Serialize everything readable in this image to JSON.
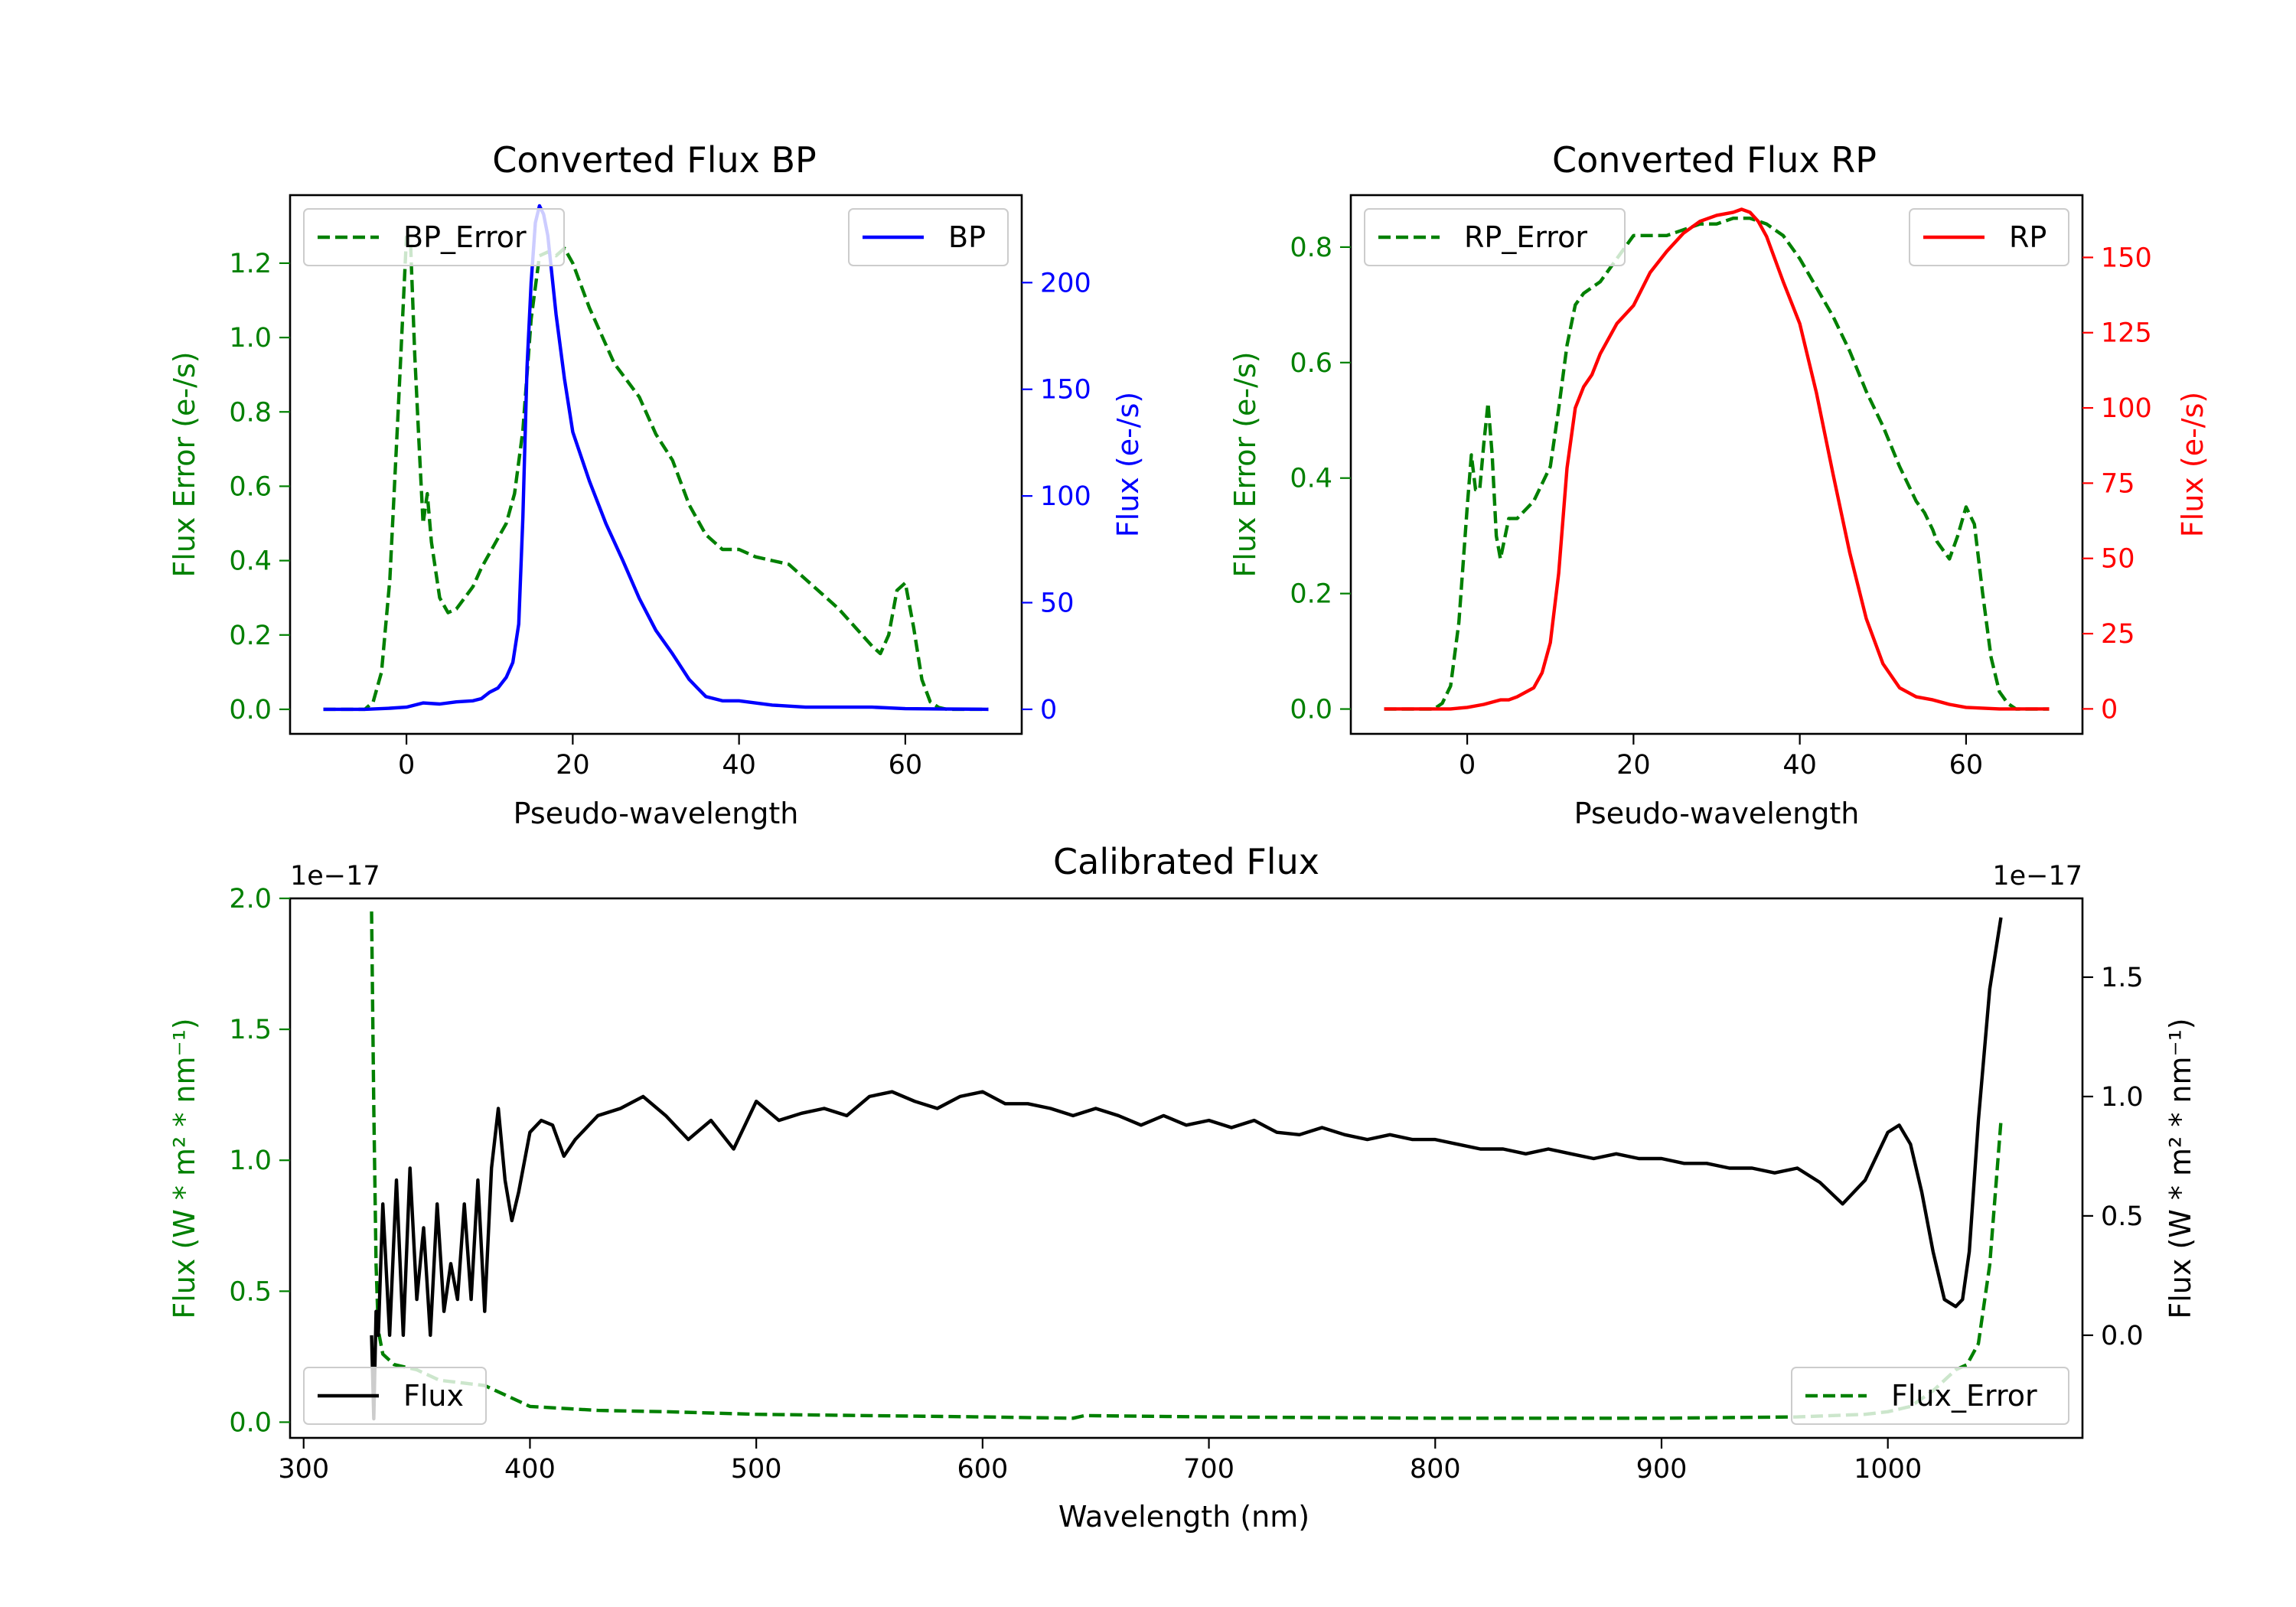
{
  "chart_data": [
    {
      "id": "bp",
      "type": "line",
      "title": "Converted Flux BP",
      "xlabel": "Pseudo-wavelength",
      "xlim": [
        -14,
        74
      ],
      "xticks": [
        0,
        20,
        40,
        60
      ],
      "left_axis": {
        "label": "Flux Error (e-/s)",
        "color": "#008000",
        "ylim": [
          -0.066,
          1.383
        ],
        "ticks": [
          0.0,
          0.2,
          0.4,
          0.6,
          0.8,
          1.0,
          1.2
        ],
        "tick_labels": [
          "0.0",
          "0.2",
          "0.4",
          "0.6",
          "0.8",
          "1.0",
          "1.2"
        ]
      },
      "right_axis": {
        "label": "Flux (e-/s)",
        "color": "#0000ff",
        "ylim": [
          -11.5,
          241
        ],
        "ticks": [
          0,
          50,
          100,
          150,
          200
        ],
        "tick_labels": [
          "0",
          "50",
          "100",
          "150",
          "200"
        ]
      },
      "series": [
        {
          "name": "BP_Error",
          "axis": "left",
          "color": "#008000",
          "style": "dashed",
          "x": [
            -10,
            -5,
            -4,
            -3,
            -2,
            -1,
            0,
            0.5,
            1,
            1.5,
            2,
            2.5,
            3,
            4,
            5,
            6,
            8,
            9,
            10,
            12,
            13,
            14,
            15,
            16,
            17,
            18,
            19,
            20,
            22,
            25,
            28,
            30,
            32,
            34,
            36,
            38,
            40,
            42,
            44,
            46,
            48,
            50,
            52,
            54,
            56,
            57,
            58,
            59,
            60,
            61,
            62,
            63,
            64,
            65,
            66,
            68,
            70
          ],
          "y": [
            0,
            0,
            0.02,
            0.1,
            0.35,
            0.8,
            1.27,
            1.25,
            0.95,
            0.72,
            0.5,
            0.58,
            0.45,
            0.3,
            0.26,
            0.27,
            0.33,
            0.38,
            0.42,
            0.5,
            0.58,
            0.75,
            1.05,
            1.22,
            1.23,
            1.22,
            1.24,
            1.2,
            1.08,
            0.93,
            0.84,
            0.74,
            0.67,
            0.55,
            0.47,
            0.43,
            0.43,
            0.41,
            0.4,
            0.39,
            0.35,
            0.31,
            0.27,
            0.22,
            0.17,
            0.15,
            0.2,
            0.32,
            0.34,
            0.22,
            0.08,
            0.02,
            0.005,
            0,
            0,
            0,
            0
          ]
        },
        {
          "name": "BP",
          "axis": "right",
          "color": "#0000ff",
          "style": "solid",
          "x": [
            -10,
            -5,
            -2,
            0,
            2,
            4,
            6,
            8,
            9,
            10,
            11,
            12,
            12.8,
            13.5,
            14,
            14.5,
            15,
            15.5,
            16,
            16.5,
            17,
            18,
            19,
            20,
            22,
            24,
            26,
            28,
            30,
            32,
            34,
            35,
            36,
            38,
            40,
            44,
            48,
            52,
            56,
            60,
            64,
            70
          ],
          "y": [
            0,
            0,
            0.5,
            1,
            3,
            2.5,
            3.5,
            4,
            5,
            8,
            10,
            15,
            22,
            40,
            90,
            160,
            200,
            228,
            236,
            232,
            222,
            185,
            155,
            130,
            107,
            87,
            70,
            52,
            37,
            26,
            14,
            10,
            6,
            4,
            4,
            2,
            1,
            1,
            1,
            0.3,
            0.2,
            0
          ]
        }
      ],
      "legends": [
        {
          "entries": [
            "BP_Error"
          ],
          "location": "upper left"
        },
        {
          "entries": [
            "BP"
          ],
          "location": "upper right"
        }
      ]
    },
    {
      "id": "rp",
      "type": "line",
      "title": "Converted Flux RP",
      "xlabel": "Pseudo-wavelength",
      "xlim": [
        -14,
        74
      ],
      "xticks": [
        0,
        20,
        40,
        60
      ],
      "left_axis": {
        "label": "Flux Error (e-/s)",
        "color": "#008000",
        "ylim": [
          -0.043,
          0.89
        ],
        "ticks": [
          0.0,
          0.2,
          0.4,
          0.6,
          0.8
        ],
        "tick_labels": [
          "0.0",
          "0.2",
          "0.4",
          "0.6",
          "0.8"
        ]
      },
      "right_axis": {
        "label": "Flux (e-/s)",
        "color": "#ff0000",
        "ylim": [
          -8.3,
          170.7
        ],
        "ticks": [
          0,
          25,
          50,
          75,
          100,
          125,
          150
        ],
        "tick_labels": [
          "0",
          "25",
          "50",
          "75",
          "100",
          "125",
          "150"
        ]
      },
      "series": [
        {
          "name": "RP_Error",
          "axis": "left",
          "color": "#008000",
          "style": "dashed",
          "x": [
            -10,
            -4,
            -3,
            -2,
            -1,
            0,
            0.5,
            1,
            1.5,
            2,
            2.5,
            3,
            3.5,
            4,
            5,
            6,
            8,
            10,
            11,
            12,
            13,
            14,
            16,
            18,
            19,
            20,
            22,
            24,
            26,
            28,
            30,
            32,
            34,
            36,
            38,
            40,
            42,
            44,
            46,
            48,
            50,
            52,
            54,
            55,
            56,
            56.5,
            57,
            58,
            59,
            60,
            61,
            62,
            63,
            64,
            65,
            66,
            70
          ],
          "y": [
            0,
            0,
            0.01,
            0.04,
            0.15,
            0.35,
            0.44,
            0.38,
            0.38,
            0.46,
            0.53,
            0.44,
            0.3,
            0.26,
            0.33,
            0.33,
            0.36,
            0.42,
            0.52,
            0.63,
            0.7,
            0.72,
            0.74,
            0.78,
            0.8,
            0.82,
            0.82,
            0.82,
            0.83,
            0.84,
            0.84,
            0.85,
            0.85,
            0.84,
            0.82,
            0.78,
            0.73,
            0.68,
            0.62,
            0.55,
            0.49,
            0.42,
            0.36,
            0.34,
            0.31,
            0.29,
            0.28,
            0.26,
            0.3,
            0.35,
            0.32,
            0.2,
            0.09,
            0.03,
            0.01,
            0,
            0
          ]
        },
        {
          "name": "RP",
          "axis": "right",
          "color": "#ff0000",
          "style": "solid",
          "x": [
            -10,
            -2,
            0,
            2,
            4,
            5,
            6,
            8,
            9,
            10,
            11,
            12,
            13,
            14,
            15,
            16,
            18,
            20,
            22,
            24,
            26,
            28,
            30,
            32,
            33,
            34,
            35,
            36,
            38,
            40,
            42,
            44,
            46,
            48,
            50,
            52,
            54,
            56,
            58,
            60,
            64,
            70
          ],
          "y": [
            0,
            0,
            0.5,
            1.5,
            3,
            3,
            4,
            7,
            12,
            22,
            45,
            80,
            100,
            107,
            111,
            118,
            128,
            134,
            145,
            152,
            158,
            162,
            164,
            165,
            166,
            165,
            162,
            157,
            142,
            128,
            105,
            78,
            52,
            30,
            15,
            7,
            4,
            3,
            1.5,
            0.5,
            0,
            0
          ]
        }
      ],
      "legends": [
        {
          "entries": [
            "RP_Error"
          ],
          "location": "upper left"
        },
        {
          "entries": [
            "RP"
          ],
          "location": "upper right"
        }
      ]
    },
    {
      "id": "cal",
      "type": "line",
      "title": "Calibrated Flux",
      "xlabel": "Wavelength (nm)",
      "xlim": [
        294,
        1086
      ],
      "xticks": [
        300,
        400,
        500,
        600,
        700,
        800,
        900,
        1000
      ],
      "left_axis": {
        "label": "Flux (W * m² * nm⁻¹)",
        "color": "#008000",
        "scale_text": "1e−17",
        "ylim": [
          -0.06,
          2.0
        ],
        "ticks": [
          0.0,
          0.5,
          1.0,
          1.5,
          2.0
        ],
        "tick_labels": [
          "0.0",
          "0.5",
          "1.0",
          "1.5",
          "2.0"
        ]
      },
      "right_axis": {
        "label": "Flux (W * m² * nm⁻¹)",
        "color": "#000000",
        "scale_text": "1e−17",
        "ylim": [
          -0.43,
          1.83
        ],
        "ticks": [
          0.0,
          0.5,
          1.0,
          1.5
        ],
        "tick_labels": [
          "0.0",
          "0.5",
          "1.0",
          "1.5"
        ]
      },
      "series": [
        {
          "name": "Flux_Error",
          "axis": "left",
          "color": "#008000",
          "style": "dashed",
          "x": [
            330,
            331,
            332,
            333,
            335,
            340,
            350,
            360,
            370,
            380,
            390,
            400,
            430,
            460,
            500,
            550,
            600,
            640,
            645,
            700,
            800,
            900,
            960,
            990,
            1000,
            1010,
            1020,
            1030,
            1035,
            1040,
            1045,
            1050
          ],
          "y": [
            1.95,
            1.2,
            0.6,
            0.35,
            0.26,
            0.22,
            0.2,
            0.16,
            0.15,
            0.14,
            0.1,
            0.06,
            0.045,
            0.04,
            0.03,
            0.025,
            0.02,
            0.015,
            0.025,
            0.02,
            0.015,
            0.015,
            0.02,
            0.03,
            0.04,
            0.06,
            0.12,
            0.2,
            0.22,
            0.3,
            0.6,
            1.15
          ]
        },
        {
          "name": "Flux",
          "axis": "right",
          "color": "#000000",
          "style": "solid",
          "x": [
            330,
            331,
            332,
            333,
            335,
            338,
            341,
            344,
            347,
            350,
            353,
            356,
            359,
            362,
            365,
            368,
            371,
            374,
            377,
            380,
            383,
            386,
            389,
            392,
            395,
            400,
            405,
            410,
            415,
            420,
            430,
            440,
            450,
            460,
            470,
            480,
            490,
            500,
            510,
            520,
            530,
            540,
            550,
            560,
            570,
            580,
            590,
            600,
            610,
            620,
            630,
            640,
            650,
            660,
            670,
            680,
            690,
            700,
            710,
            720,
            730,
            740,
            750,
            760,
            770,
            780,
            790,
            800,
            810,
            820,
            830,
            840,
            850,
            860,
            870,
            880,
            890,
            900,
            910,
            920,
            930,
            940,
            950,
            960,
            970,
            980,
            990,
            1000,
            1005,
            1010,
            1015,
            1020,
            1025,
            1030,
            1033,
            1036,
            1040,
            1045,
            1050
          ],
          "y": [
            0.0,
            -0.35,
            0.1,
            0.0,
            0.55,
            0.0,
            0.65,
            0.0,
            0.7,
            0.15,
            0.45,
            0.0,
            0.55,
            0.1,
            0.3,
            0.15,
            0.55,
            0.15,
            0.65,
            0.1,
            0.7,
            0.95,
            0.65,
            0.48,
            0.6,
            0.85,
            0.9,
            0.88,
            0.75,
            0.82,
            0.92,
            0.95,
            1.0,
            0.92,
            0.82,
            0.9,
            0.78,
            0.98,
            0.9,
            0.93,
            0.95,
            0.92,
            1.0,
            1.02,
            0.98,
            0.95,
            1.0,
            1.02,
            0.97,
            0.97,
            0.95,
            0.92,
            0.95,
            0.92,
            0.88,
            0.92,
            0.88,
            0.9,
            0.87,
            0.9,
            0.85,
            0.84,
            0.87,
            0.84,
            0.82,
            0.84,
            0.82,
            0.82,
            0.8,
            0.78,
            0.78,
            0.76,
            0.78,
            0.76,
            0.74,
            0.76,
            0.74,
            0.74,
            0.72,
            0.72,
            0.7,
            0.7,
            0.68,
            0.7,
            0.64,
            0.55,
            0.65,
            0.85,
            0.88,
            0.8,
            0.6,
            0.35,
            0.15,
            0.12,
            0.15,
            0.35,
            0.9,
            1.45,
            1.75
          ]
        }
      ],
      "legends": [
        {
          "entries": [
            "Flux"
          ],
          "location": "lower left"
        },
        {
          "entries": [
            "Flux_Error"
          ],
          "location": "lower right"
        }
      ]
    }
  ]
}
